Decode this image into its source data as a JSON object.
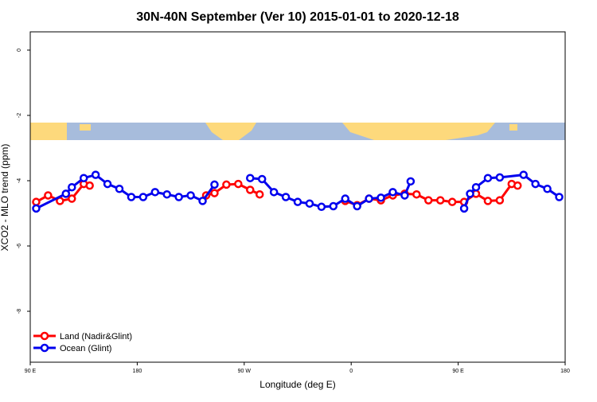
{
  "chart_data": {
    "type": "line",
    "title": "30N-40N September (Ver 10)   2015-01-01 to 2020-12-18",
    "xlabel": "Longitude (deg E)",
    "ylabel": "XCO2 - MLO trend (ppm)",
    "xlim": [
      90,
      540
    ],
    "ylim": [
      -9.56,
      0.56
    ],
    "xticks": [
      {
        "value": 90,
        "label": "90 E"
      },
      {
        "value": 180,
        "label": "180"
      },
      {
        "value": 270,
        "label": "90 W"
      },
      {
        "value": 360,
        "label": "0"
      },
      {
        "value": 450,
        "label": "90 E"
      },
      {
        "value": 540,
        "label": "180"
      }
    ],
    "yticks": [
      0,
      -2,
      -4,
      -6,
      -8
    ],
    "legend": "bottomleft",
    "series": [
      {
        "name": "Land (Nadir&Glint)",
        "color": "#ff0000",
        "x": [
          95,
          105,
          115,
          125,
          135,
          140,
          null,
          238,
          245,
          255,
          265,
          275,
          283,
          null,
          355,
          365,
          375,
          385,
          395,
          405,
          415,
          425,
          435,
          445,
          455,
          465,
          475,
          485,
          495,
          500
        ],
        "values": [
          -4.65,
          -4.45,
          -4.62,
          -4.55,
          -4.1,
          -4.15,
          null,
          -4.45,
          -4.38,
          -4.12,
          -4.1,
          -4.28,
          -4.42,
          null,
          -4.62,
          -4.75,
          -4.55,
          -4.6,
          -4.45,
          -4.4,
          -4.42,
          -4.6,
          -4.6,
          -4.65,
          -4.65,
          -4.4,
          -4.62,
          -4.6,
          -4.1,
          -4.15
        ]
      },
      {
        "name": "Ocean (Glint)",
        "color": "#0000ee",
        "x": [
          95,
          120,
          125,
          135,
          145,
          155,
          165,
          175,
          185,
          195,
          205,
          215,
          225,
          235,
          245,
          null,
          275,
          285,
          295,
          305,
          315,
          325,
          335,
          345,
          355,
          365,
          375,
          385,
          395,
          405,
          410,
          null,
          455,
          460,
          465,
          475,
          485,
          505,
          515,
          525,
          535
        ],
        "values": [
          -4.85,
          -4.4,
          -4.2,
          -3.92,
          -3.82,
          -4.1,
          -4.25,
          -4.5,
          -4.5,
          -4.35,
          -4.42,
          -4.5,
          -4.45,
          -4.62,
          -4.12,
          null,
          -3.92,
          -3.95,
          -4.35,
          -4.5,
          -4.65,
          -4.7,
          -4.8,
          -4.78,
          -4.55,
          -4.78,
          -4.55,
          -4.52,
          -4.35,
          -4.45,
          -4.02,
          null,
          -4.85,
          -4.4,
          -4.2,
          -3.92,
          -3.9,
          -3.82,
          -4.1,
          -4.25,
          -4.5
        ]
      }
    ]
  }
}
